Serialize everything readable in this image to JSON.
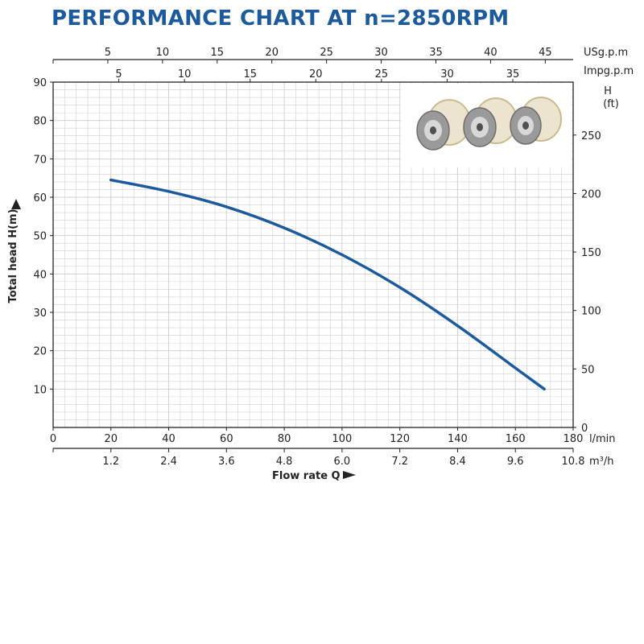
{
  "title": "PERFORMANCE CHART AT n=2850RPM",
  "colors": {
    "curve": "#1d5a9c",
    "title": "#1d5a9c",
    "grid": "#d2d2d2",
    "axis": "#222222"
  },
  "chart_data": {
    "type": "line",
    "grid": true,
    "ylabel": "Total  head H(m)",
    "ylim": [
      0,
      90
    ],
    "yticks": [
      10,
      20,
      30,
      40,
      50,
      60,
      70,
      80,
      90
    ],
    "xlabel": "Flow rate Q",
    "xlim": [
      0,
      180
    ],
    "xticks": [
      0,
      20,
      40,
      60,
      80,
      100,
      120,
      140,
      160,
      180
    ],
    "x_unit": "l/min",
    "secondary_x": {
      "unit": "m³/h",
      "ticks": [
        "1.2",
        "2.4",
        "3.6",
        "4.8",
        "6.0",
        "7.2",
        "8.4",
        "9.6",
        "10.8"
      ]
    },
    "top_axis_usgpm": {
      "unit": "USg.p.m",
      "ticks": [
        "5",
        "10",
        "15",
        "20",
        "25",
        "30",
        "35",
        "40",
        "45"
      ]
    },
    "top_axis_impgpm": {
      "unit": "Impg.p.m",
      "ticks": [
        "5",
        "10",
        "15",
        "20",
        "25",
        "30",
        "35"
      ]
    },
    "right_axis": {
      "label_line1": "H",
      "label_line2": "(ft)",
      "ticks": [
        "0",
        "50",
        "100",
        "150",
        "200",
        "250"
      ]
    },
    "series": [
      {
        "x": [
          20,
          40,
          60,
          80,
          100,
          120,
          140,
          160,
          170
        ],
        "y": [
          64.5,
          61.5,
          57.5,
          52,
          45,
          36.5,
          26.5,
          15.5,
          10
        ]
      }
    ]
  }
}
